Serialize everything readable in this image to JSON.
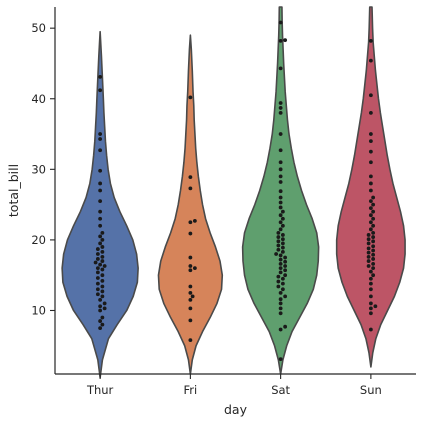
{
  "chart_data": {
    "type": "violin+swarm",
    "xlabel": "day",
    "ylabel": "total_bill",
    "categories": [
      "Thur",
      "Fri",
      "Sat",
      "Sun"
    ],
    "colors": [
      "#5572a8",
      "#d6845a",
      "#5f9f6e",
      "#bd5566"
    ],
    "point_color": "#1a1a1a",
    "outline_color": "#4a4a4a",
    "ylim": [
      1,
      53
    ],
    "yticks": [
      10,
      20,
      30,
      40,
      50
    ],
    "grid": false,
    "density": [
      {
        "name": "Thur",
        "y": [
          0.5,
          3,
          6,
          8,
          10,
          12,
          14,
          16,
          18,
          20,
          22,
          24,
          26,
          28,
          30,
          32,
          34,
          36,
          38,
          40,
          43,
          46,
          49.5
        ],
        "w": [
          0,
          0.06,
          0.22,
          0.45,
          0.7,
          0.87,
          0.98,
          1.0,
          0.96,
          0.86,
          0.7,
          0.52,
          0.37,
          0.27,
          0.21,
          0.17,
          0.14,
          0.12,
          0.1,
          0.085,
          0.06,
          0.035,
          0
        ]
      },
      {
        "name": "Fri",
        "y": [
          1,
          3,
          5,
          7,
          9,
          11,
          13,
          15,
          17,
          19,
          21,
          23,
          25,
          27,
          29,
          31,
          33,
          35,
          37,
          39,
          41,
          44,
          47,
          49
        ],
        "w": [
          0,
          0.05,
          0.15,
          0.32,
          0.52,
          0.7,
          0.82,
          0.84,
          0.78,
          0.66,
          0.52,
          0.4,
          0.32,
          0.26,
          0.21,
          0.17,
          0.14,
          0.12,
          0.1,
          0.09,
          0.07,
          0.05,
          0.025,
          0
        ]
      },
      {
        "name": "Sat",
        "y": [
          1,
          3,
          5,
          7,
          9,
          11,
          13,
          15,
          17,
          19,
          21,
          23,
          25,
          27,
          29,
          31,
          33,
          35,
          37,
          39,
          41,
          43,
          45,
          47,
          49,
          51,
          53
        ],
        "w": [
          0,
          0.06,
          0.16,
          0.3,
          0.5,
          0.7,
          0.86,
          0.95,
          0.99,
          1.0,
          0.95,
          0.83,
          0.68,
          0.55,
          0.44,
          0.35,
          0.28,
          0.22,
          0.18,
          0.15,
          0.12,
          0.1,
          0.08,
          0.065,
          0.05,
          0.04,
          0.035
        ]
      },
      {
        "name": "Sun",
        "y": [
          2,
          4,
          6,
          8,
          10,
          12,
          14,
          16,
          18,
          20,
          22,
          24,
          26,
          28,
          30,
          32,
          34,
          36,
          38,
          40,
          42,
          44,
          46,
          48,
          50,
          52,
          53
        ],
        "w": [
          0,
          0.05,
          0.13,
          0.26,
          0.44,
          0.62,
          0.76,
          0.86,
          0.9,
          0.9,
          0.86,
          0.78,
          0.68,
          0.58,
          0.5,
          0.43,
          0.37,
          0.31,
          0.25,
          0.2,
          0.16,
          0.12,
          0.09,
          0.06,
          0.045,
          0.035,
          0.03
        ]
      }
    ],
    "points": [
      [
        7.5,
        8.0,
        8.5,
        9.0,
        10.0,
        10.3,
        10.6,
        11.0,
        11.5,
        12.0,
        12.3,
        12.7,
        13.0,
        13.4,
        13.8,
        14.2,
        14.6,
        15.0,
        15.4,
        15.8,
        16.0,
        16.3,
        16.5,
        16.8,
        17.0,
        17.3,
        17.6,
        18.0,
        18.3,
        18.7,
        19.0,
        19.5,
        20.0,
        20.5,
        21.0,
        22.0,
        23.0,
        24.0,
        25.5,
        27.0,
        28.0,
        29.8,
        32.7,
        34.3,
        35.0,
        41.2,
        43.1
      ],
      [
        5.8,
        8.6,
        10.3,
        11.5,
        12.0,
        12.5,
        13.4,
        15.7,
        16.0,
        16.3,
        17.5,
        20.9,
        22.5,
        22.7,
        27.3,
        28.9,
        40.2
      ],
      [
        3.1,
        7.3,
        7.7,
        9.6,
        10.3,
        11.0,
        11.6,
        12.0,
        12.5,
        13.0,
        13.4,
        13.8,
        14.1,
        14.5,
        14.8,
        15.0,
        15.4,
        15.7,
        16.0,
        16.3,
        16.6,
        16.9,
        17.2,
        17.5,
        17.8,
        18.0,
        18.3,
        18.6,
        18.9,
        19.2,
        19.5,
        19.8,
        20.1,
        20.4,
        20.7,
        21.0,
        21.5,
        22.0,
        22.5,
        23.0,
        23.5,
        24.0,
        24.6,
        25.3,
        26.0,
        26.9,
        28.2,
        29.0,
        30.0,
        31.0,
        32.7,
        35.0,
        38.0,
        38.7,
        39.4,
        44.3,
        48.2,
        48.3,
        50.8
      ],
      [
        7.3,
        9.6,
        10.3,
        10.6,
        11.0,
        12.0,
        13.0,
        13.8,
        14.5,
        15.0,
        15.5,
        16.0,
        16.3,
        16.6,
        17.0,
        17.3,
        17.6,
        17.9,
        18.2,
        18.5,
        18.8,
        19.1,
        19.5,
        19.8,
        20.1,
        20.4,
        20.7,
        21.0,
        21.5,
        22.0,
        22.5,
        23.0,
        23.5,
        24.0,
        24.5,
        25.0,
        25.5,
        26.0,
        27.0,
        28.0,
        29.0,
        31.0,
        32.5,
        34.0,
        35.0,
        38.0,
        40.5,
        45.4,
        48.2
      ]
    ]
  }
}
